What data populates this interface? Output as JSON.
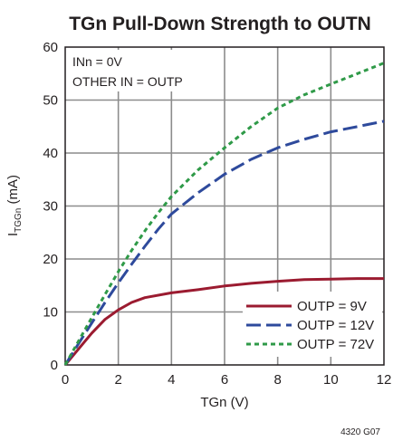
{
  "chart_data": {
    "type": "line",
    "title": "TGn Pull-Down Strength to OUTN",
    "xlabel": "TGn (V)",
    "ylabel_main": "I",
    "ylabel_sub": "TGGn",
    "ylabel_unit": " (mA)",
    "xlim": [
      0,
      12
    ],
    "ylim": [
      0,
      60
    ],
    "x_ticks": [
      0,
      2,
      4,
      6,
      8,
      10,
      12
    ],
    "y_ticks": [
      0,
      10,
      20,
      30,
      40,
      50,
      60
    ],
    "grid": true,
    "legend_position": "bottom-right",
    "annotations": [
      "INn = 0V",
      "OTHER IN = OUTP"
    ],
    "figure_id": "4320 G07",
    "series": [
      {
        "name": "OUTP = 9V",
        "color": "#9b1b30",
        "style": "solid",
        "x": [
          0,
          0.5,
          1,
          1.5,
          2,
          2.5,
          3,
          4,
          5,
          6,
          7,
          8,
          9,
          10,
          11,
          12
        ],
        "y": [
          0,
          3.0,
          6.0,
          8.6,
          10.4,
          11.8,
          12.7,
          13.6,
          14.2,
          14.9,
          15.4,
          15.8,
          16.1,
          16.2,
          16.3,
          16.3
        ]
      },
      {
        "name": "OUTP = 12V",
        "color": "#2e4a9c",
        "style": "dashed",
        "x": [
          0,
          0.5,
          1,
          1.5,
          2,
          2.5,
          3,
          3.5,
          4,
          5,
          6,
          7,
          8,
          9,
          10,
          11,
          12
        ],
        "y": [
          0,
          4.0,
          7.9,
          11.8,
          15.5,
          19.0,
          22.4,
          25.6,
          28.5,
          32.5,
          36.0,
          38.8,
          41.0,
          42.6,
          44.0,
          45.0,
          46.0
        ]
      },
      {
        "name": "OUTP = 72V",
        "color": "#2f9a48",
        "style": "dotted",
        "x": [
          0,
          0.5,
          1,
          1.5,
          2,
          2.5,
          3,
          3.5,
          4,
          5,
          6,
          7,
          8,
          9,
          10,
          11,
          12
        ],
        "y": [
          0,
          4.5,
          8.9,
          13.3,
          17.6,
          21.6,
          25.3,
          28.7,
          31.8,
          36.8,
          41.0,
          45.0,
          48.5,
          51.0,
          53.0,
          55.0,
          57.0
        ]
      }
    ]
  }
}
